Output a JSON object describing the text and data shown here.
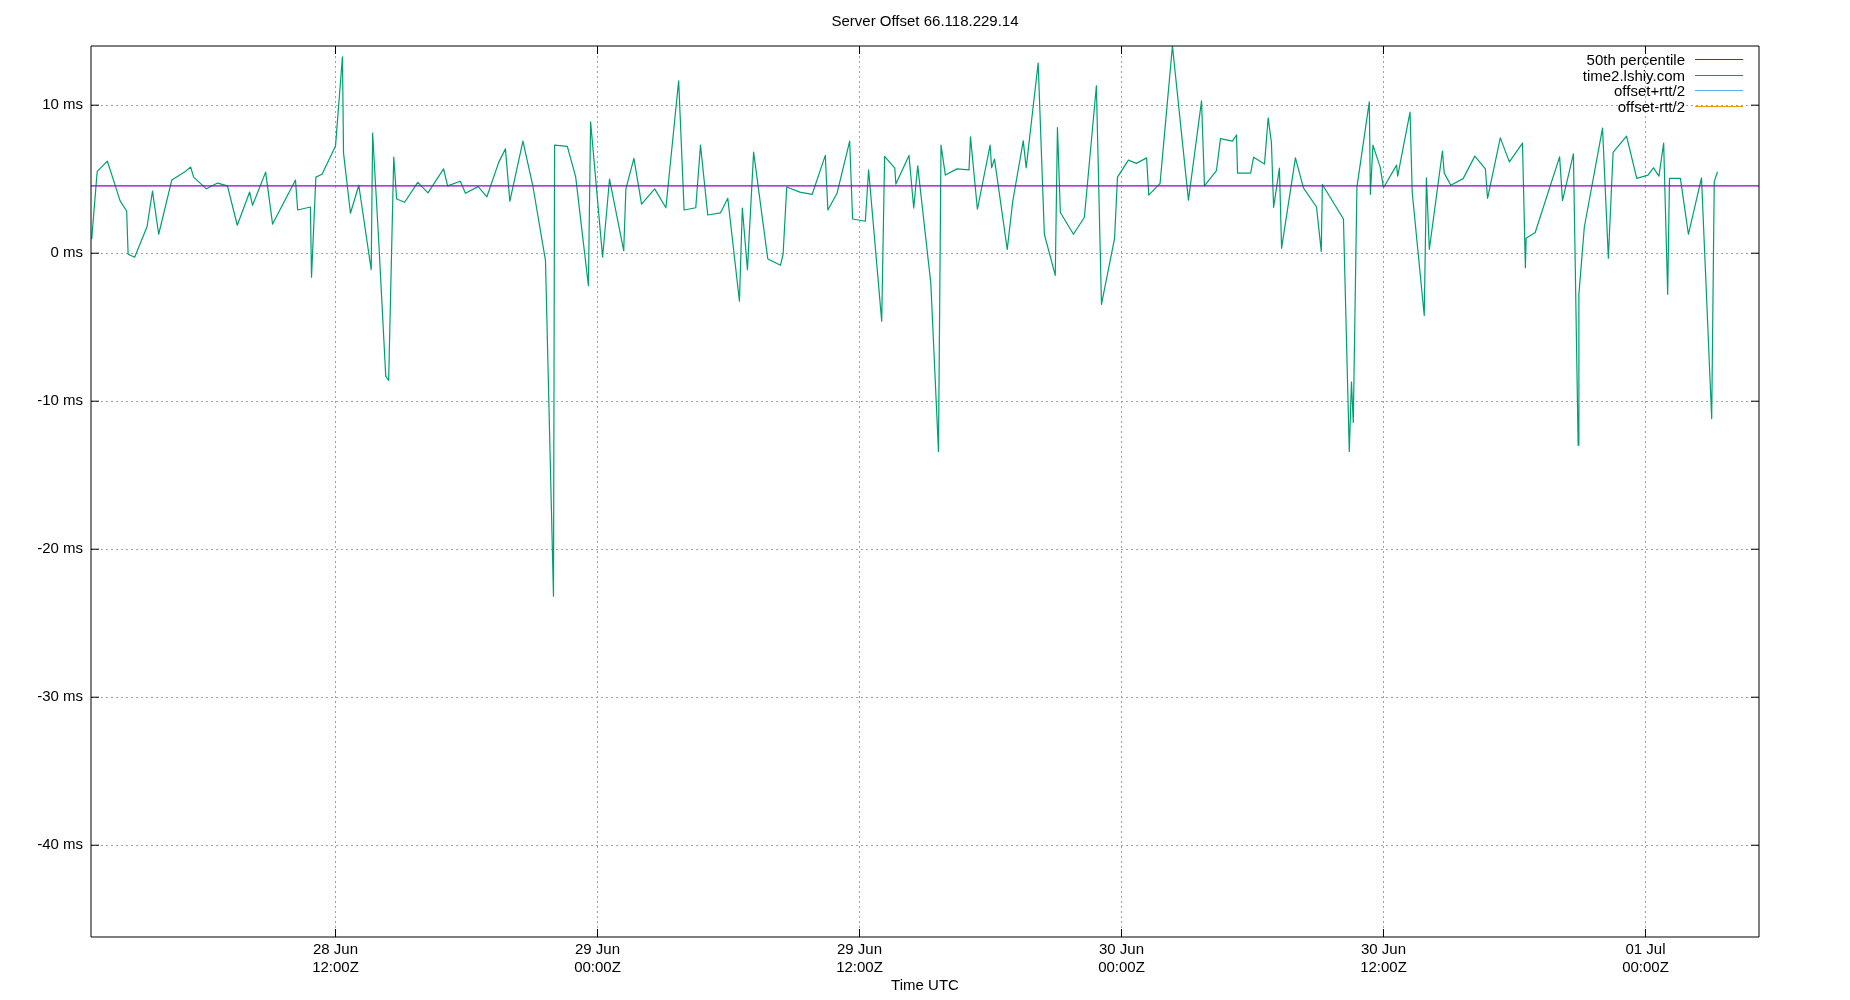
{
  "chart_data": {
    "type": "line",
    "title": "Server Offset 66.118.229.14",
    "xlabel": "Time UTC",
    "xlim": [
      "--06-28T00:48",
      "--07-01T05:12"
    ],
    "xticks": [
      {
        "value": "--06-28T12:00",
        "label": "28 Jun 12:00Z"
      },
      {
        "value": "--06-29T00:00",
        "label": "29 Jun 00:00Z"
      },
      {
        "value": "--06-29T12:00",
        "label": "29 Jun 12:00Z"
      },
      {
        "value": "--06-30T00:00",
        "label": "30 Jun 00:00Z"
      },
      {
        "value": "--06-30T12:00",
        "label": "30 Jun 12:00Z"
      },
      {
        "value": "--07-01T00:00",
        "label": "01 Jul 00:00Z"
      }
    ],
    "ylim": [
      -46.2,
      14
    ],
    "yticks": [
      {
        "value": -40,
        "label": "-40 ms"
      },
      {
        "value": -30,
        "label": "-30 ms"
      },
      {
        "value": -20,
        "label": "-20 ms"
      },
      {
        "value": -10,
        "label": "-10 ms"
      },
      {
        "value": 0,
        "label": "0 ms"
      },
      {
        "value": 10,
        "label": "10 ms"
      }
    ],
    "grid": true,
    "legend": "top right",
    "marker": "none",
    "line_style": "solid",
    "series": [
      {
        "name": "50th percentile",
        "color": "#9400d3",
        "x": [
          "--06-28T00:48",
          "--07-01T05:12"
        ],
        "values": [
          4.55,
          4.55
        ]
      },
      {
        "name": "time2.lshiy.com",
        "color": "#009e73",
        "x": [
          "--06-28T00:50",
          "--06-28T01:05",
          "--06-28T01:33",
          "--06-28T02:08",
          "--06-28T02:26",
          "--06-28T02:30",
          "--06-28T02:48",
          "--06-28T03:22",
          "--06-28T03:37",
          "--06-28T03:54",
          "--06-28T04:30",
          "--06-28T05:05",
          "--06-28T05:22",
          "--06-28T05:30",
          "--06-28T06:05",
          "--06-28T06:36",
          "--06-28T07:03",
          "--06-28T07:30",
          "--06-28T08:04",
          "--06-28T08:12",
          "--06-28T08:48",
          "--06-28T09:07",
          "--06-28T10:10",
          "--06-28T10:16",
          "--06-28T10:51",
          "--06-28T10:54",
          "--06-28T11:06",
          "--06-28T11:23",
          "--06-28T12:00",
          "--06-28T12:19",
          "--06-28T12:22",
          "--06-28T12:41",
          "--06-28T13:04",
          "--06-28T13:38",
          "--06-28T13:42",
          "--06-28T13:58",
          "--06-28T14:18",
          "--06-28T14:26",
          "--06-28T14:40",
          "--06-28T14:48",
          "--06-28T15:10",
          "--06-28T15:46",
          "--06-28T16:14",
          "--06-28T16:57",
          "--06-28T17:08",
          "--06-28T17:43",
          "--06-28T17:57",
          "--06-28T18:32",
          "--06-28T18:56",
          "--06-28T19:29",
          "--06-28T19:47",
          "--06-28T19:59",
          "--06-28T20:35",
          "--06-28T21:02",
          "--06-28T21:37",
          "--06-28T21:59",
          "--06-28T22:02",
          "--06-28T22:37",
          "--06-28T23:00",
          "--06-28T23:35",
          "--06-28T23:41",
          "--06-29T00:14",
          "--06-29T00:33",
          "--06-29T01:12",
          "--06-29T01:18",
          "--06-29T01:40",
          "--06-29T02:01",
          "--06-29T02:37",
          "--06-29T03:08",
          "--06-29T03:43",
          "--06-29T03:58",
          "--06-29T04:30",
          "--06-29T04:43",
          "--06-29T05:03",
          "--06-29T05:38",
          "--06-29T05:58",
          "--06-29T06:30",
          "--06-29T06:38",
          "--06-29T06:52",
          "--06-29T07:09",
          "--06-29T07:48",
          "--06-29T08:23",
          "--06-29T08:30",
          "--06-29T08:40",
          "--06-29T09:16",
          "--06-29T09:50",
          "--06-29T10:26",
          "--06-29T10:33",
          "--06-29T10:58",
          "--06-29T11:33",
          "--06-29T11:41",
          "--06-29T12:16",
          "--06-29T12:25",
          "--06-29T13:01",
          "--06-29T13:09",
          "--06-29T13:37",
          "--06-29T13:40",
          "--06-29T14:16",
          "--06-29T14:29",
          "--06-29T14:40",
          "--06-29T15:16",
          "--06-29T15:37",
          "--06-29T15:44",
          "--06-29T15:56",
          "--06-29T16:28",
          "--06-29T17:01",
          "--06-29T17:05",
          "--06-29T17:24",
          "--06-29T17:59",
          "--06-29T18:03",
          "--06-29T18:11",
          "--06-29T18:46",
          "--06-29T19:01",
          "--06-29T19:30",
          "--06-29T19:38",
          "--06-29T20:11",
          "--06-29T20:28",
          "--06-29T20:58",
          "--06-29T21:04",
          "--06-29T21:12",
          "--06-29T21:48",
          "--06-29T22:18",
          "--06-29T22:51",
          "--06-29T23:05",
          "--06-29T23:41",
          "--06-29T23:49",
          "--06-30T00:19",
          "--06-30T00:41",
          "--06-30T01:09",
          "--06-30T01:15",
          "--06-30T01:46",
          "--06-30T02:20",
          "--06-30T03:04",
          "--06-30T03:40",
          "--06-30T03:48",
          "--06-30T04:21",
          "--06-30T04:32",
          "--06-30T05:05",
          "--06-30T05:16",
          "--06-30T05:19",
          "--06-30T05:55",
          "--06-30T06:03",
          "--06-30T06:33",
          "--06-30T06:43",
          "--06-30T06:52",
          "--06-30T06:58",
          "--06-30T07:14",
          "--06-30T07:20",
          "--06-30T07:58",
          "--06-30T08:20",
          "--06-30T08:56",
          "--06-30T09:09",
          "--06-30T09:12",
          "--06-30T10:10",
          "--06-30T10:26",
          "--06-30T10:32",
          "--06-30T10:37",
          "--06-30T10:47",
          "--06-30T11:21",
          "--06-30T11:24",
          "--06-30T11:31",
          "--06-30T11:51",
          "--06-30T12:00",
          "--06-30T12:36",
          "--06-30T12:39",
          "--06-30T13:13",
          "--06-30T13:19",
          "--06-30T13:52",
          "--06-30T13:58",
          "--06-30T14:06",
          "--06-30T14:42",
          "--06-30T14:47",
          "--06-30T15:05",
          "--06-30T15:39",
          "--06-30T16:11",
          "--06-30T16:40",
          "--06-30T16:46",
          "--06-30T17:21",
          "--06-30T17:46",
          "--06-30T18:22",
          "--06-30T18:30",
          "--06-30T18:32",
          "--06-30T18:57",
          "--06-30T20:04",
          "--06-30T20:12",
          "--06-30T20:42",
          "--06-30T20:55",
          "--06-30T20:57",
          "--06-30T21:12",
          "--06-30T22:02",
          "--06-30T22:18",
          "--06-30T22:31",
          "--06-30T23:08",
          "--06-30T23:36",
          "--07-01T00:07",
          "--07-01T00:22",
          "--07-01T00:37",
          "--07-01T00:50",
          "--07-01T01:01",
          "--07-01T01:06",
          "--07-01T01:36",
          "--07-01T01:58",
          "--07-01T02:34",
          "--07-01T03:02",
          "--07-01T03:09",
          "--07-01T03:18"
        ],
        "values": [
          0.96,
          5.53,
          6.22,
          3.54,
          2.85,
          -0.07,
          -0.27,
          1.79,
          4.2,
          1.28,
          4.94,
          5.48,
          5.82,
          5.14,
          4.35,
          4.74,
          4.55,
          1.89,
          4.13,
          3.24,
          5.48,
          1.97,
          4.94,
          2.92,
          3.12,
          -1.62,
          5.14,
          5.33,
          7.25,
          13.27,
          6.76,
          2.7,
          4.59,
          -1.11,
          8.11,
          1.15,
          -8.3,
          -8.6,
          6.49,
          3.66,
          3.44,
          4.79,
          4.08,
          5.7,
          4.55,
          4.86,
          4.05,
          4.5,
          3.81,
          6.17,
          7.05,
          3.51,
          7.57,
          4.59,
          -0.49,
          -23.17,
          7.3,
          7.22,
          5.16,
          -2.19,
          8.87,
          -0.27,
          5.01,
          0.17,
          4.35,
          6.41,
          3.32,
          4.35,
          3.07,
          11.65,
          2.92,
          3.07,
          7.3,
          2.58,
          2.73,
          3.71,
          -3.24,
          3.05,
          -1.11,
          6.83,
          -0.39,
          -0.81,
          -0.07,
          4.47,
          4.13,
          3.98,
          6.61,
          2.92,
          4.03,
          7.57,
          2.31,
          2.16,
          5.63,
          -4.59,
          6.54,
          5.75,
          4.67,
          6.61,
          3.05,
          5.9,
          -2.04,
          -13.39,
          7.3,
          5.28,
          5.7,
          5.63,
          7.86,
          2.97,
          7.3,
          5.77,
          6.36,
          0.25,
          3.49,
          7.59,
          5.77,
          12.85,
          1.28,
          -1.5,
          8.48,
          2.75,
          1.28,
          2.43,
          11.3,
          -3.46,
          1.01,
          5.14,
          6.29,
          6.07,
          6.44,
          3.93,
          4.72,
          14,
          3.59,
          10.29,
          4.55,
          5.58,
          7.74,
          7.57,
          7.99,
          5.41,
          5.41,
          6.49,
          6.02,
          9.14,
          7.49,
          3.1,
          5.75,
          0.34,
          6.44,
          4.42,
          3.12,
          0.12,
          4.64,
          2.31,
          -13.39,
          -8.7,
          -11.43,
          4.47,
          10.22,
          3.98,
          7.3,
          5.82,
          4.42,
          5.95,
          5.21,
          9.53,
          4.1,
          -4.2,
          5.09,
          0.25,
          6.9,
          5.41,
          4.59,
          5.04,
          6.56,
          5.7,
          3.71,
          7.79,
          6.17,
          7.44,
          -0.98,
          1.01,
          1.4,
          6.51,
          3.56,
          6.71,
          -12.97,
          -2.78,
          1.77,
          8.45,
          -0.34,
          6.81,
          7.91,
          5.06,
          5.28,
          5.77,
          5.21,
          7.44,
          -2.78,
          5.06,
          5.06,
          1.28,
          5.09,
          -11.18,
          4.84,
          5.5
        ]
      },
      {
        "name": "offset+rtt/2",
        "color": "#56b4e9"
      },
      {
        "name": "offset-rtt/2",
        "color": "#e69f00"
      }
    ]
  }
}
